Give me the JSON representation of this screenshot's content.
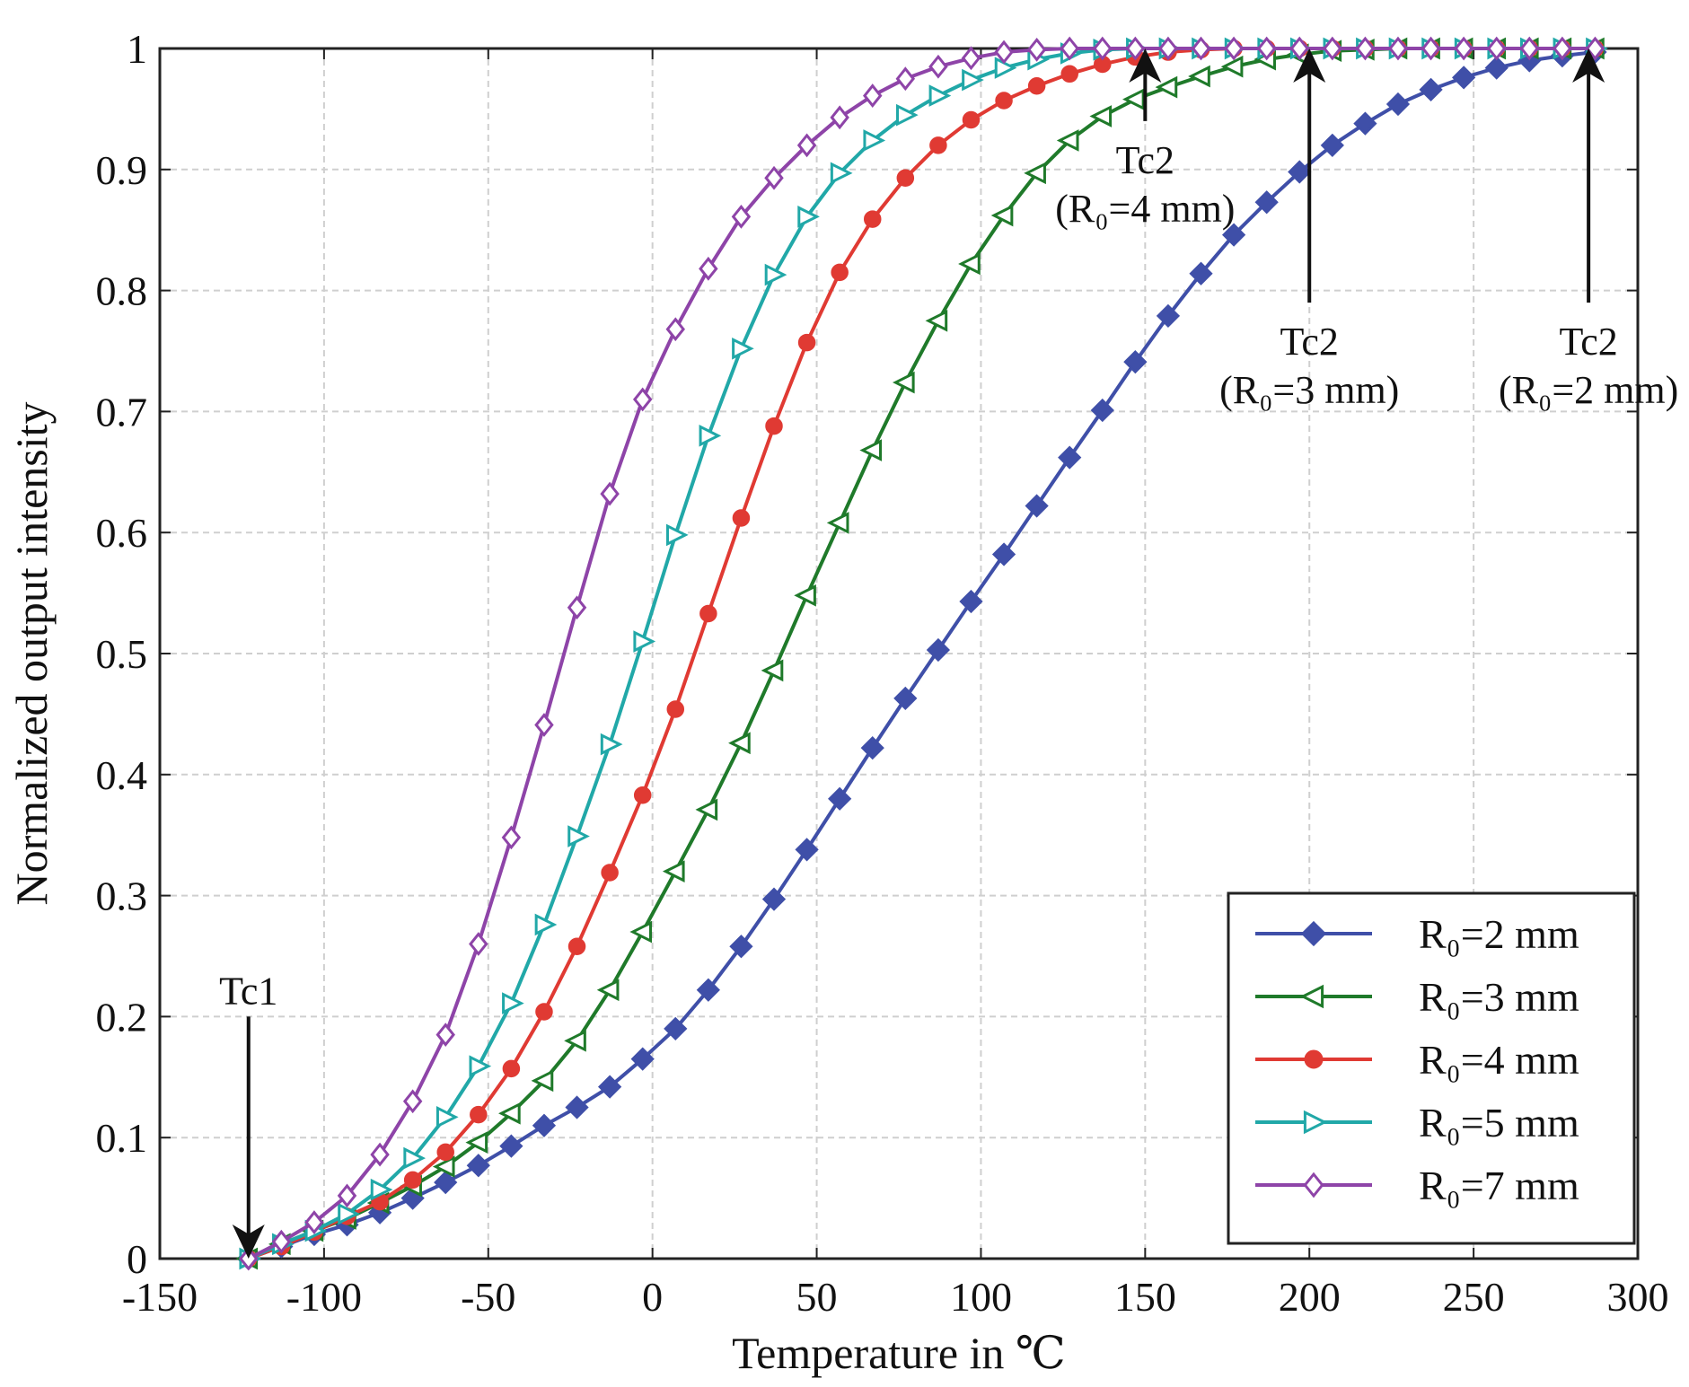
{
  "chart_data": {
    "type": "line",
    "title": "",
    "xlabel": "Temperature in ℃",
    "ylabel": "Normalized output intensity",
    "xlim": [
      -150,
      300
    ],
    "ylim": [
      0,
      1
    ],
    "xticks": [
      "-150",
      "-100",
      "-50",
      "0",
      "50",
      "100",
      "150",
      "200",
      "250",
      "300"
    ],
    "yticks": [
      "0",
      "0.1",
      "0.2",
      "0.3",
      "0.4",
      "0.5",
      "0.6",
      "0.7",
      "0.8",
      "0.9",
      "1"
    ],
    "grid": true,
    "legend_position": "bottom-right",
    "x_start": -123,
    "x_step": 10,
    "series": [
      {
        "name": "R₀=2 mm",
        "color": "#3f4fa8",
        "marker": "diamond-filled",
        "values": [
          0,
          0.01,
          0.02,
          0.028,
          0.038,
          0.05,
          0.063,
          0.077,
          0.093,
          0.11,
          0.125,
          0.142,
          0.165,
          0.19,
          0.222,
          0.258,
          0.297,
          0.338,
          0.38,
          0.422,
          0.463,
          0.503,
          0.543,
          0.582,
          0.622,
          0.662,
          0.701,
          0.741,
          0.779,
          0.814,
          0.846,
          0.873,
          0.898,
          0.92,
          0.938,
          0.954,
          0.966,
          0.976,
          0.984,
          0.99,
          0.994,
          0.997
        ]
      },
      {
        "name": "R₀=3 mm",
        "color": "#1f7a2a",
        "marker": "triangle-left",
        "values": [
          0,
          0.012,
          0.023,
          0.033,
          0.046,
          0.06,
          0.076,
          0.096,
          0.12,
          0.147,
          0.18,
          0.222,
          0.27,
          0.32,
          0.371,
          0.426,
          0.486,
          0.548,
          0.608,
          0.668,
          0.724,
          0.775,
          0.822,
          0.862,
          0.897,
          0.924,
          0.944,
          0.958,
          0.968,
          0.977,
          0.985,
          0.991,
          0.995,
          0.998,
          0.999,
          1,
          1,
          1,
          1,
          1,
          1,
          1
        ]
      },
      {
        "name": "R₀=4 mm",
        "color": "#e03a33",
        "marker": "circle-filled",
        "values": [
          0,
          0.01,
          0.022,
          0.035,
          0.047,
          0.065,
          0.088,
          0.119,
          0.157,
          0.204,
          0.258,
          0.319,
          0.383,
          0.454,
          0.533,
          0.612,
          0.688,
          0.757,
          0.815,
          0.859,
          0.893,
          0.92,
          0.941,
          0.957,
          0.969,
          0.979,
          0.987,
          0.993,
          0.997,
          0.999,
          1,
          1,
          1,
          1,
          1,
          1,
          1,
          1,
          1,
          1,
          1,
          1
        ]
      },
      {
        "name": "R₀=5 mm",
        "color": "#21a8a8",
        "marker": "triangle-right",
        "values": [
          0,
          0.012,
          0.023,
          0.037,
          0.057,
          0.083,
          0.117,
          0.159,
          0.211,
          0.276,
          0.349,
          0.425,
          0.51,
          0.598,
          0.68,
          0.752,
          0.813,
          0.861,
          0.897,
          0.924,
          0.945,
          0.961,
          0.974,
          0.984,
          0.991,
          0.996,
          0.999,
          1,
          1,
          1,
          1,
          1,
          1,
          1,
          1,
          1,
          1,
          1,
          1,
          1,
          1,
          1
        ]
      },
      {
        "name": "R₀=7 mm",
        "color": "#8e44a8",
        "marker": "diamond-open",
        "values": [
          0,
          0.014,
          0.03,
          0.052,
          0.086,
          0.13,
          0.185,
          0.26,
          0.348,
          0.441,
          0.538,
          0.632,
          0.71,
          0.768,
          0.818,
          0.861,
          0.893,
          0.92,
          0.943,
          0.961,
          0.975,
          0.985,
          0.992,
          0.997,
          0.999,
          1,
          1,
          1,
          1,
          1,
          1,
          1,
          1,
          1,
          1,
          1,
          1,
          1,
          1,
          1,
          1,
          1
        ]
      }
    ],
    "annotations": [
      {
        "label": "Tc1",
        "sub": "",
        "x": -123,
        "from_y": 0.2,
        "to_y": 0.0
      },
      {
        "label": "Tc2",
        "sub": "(R₀=4 mm)",
        "x": 150,
        "from_y": 0.94,
        "to_y": 1.0
      },
      {
        "label": "Tc2",
        "sub": "(R₀=3 mm)",
        "x": 200,
        "from_y": 0.79,
        "to_y": 1.0
      },
      {
        "label": "Tc2",
        "sub": "(R₀=2 mm)",
        "x": 285,
        "from_y": 0.79,
        "to_y": 1.0
      }
    ]
  }
}
